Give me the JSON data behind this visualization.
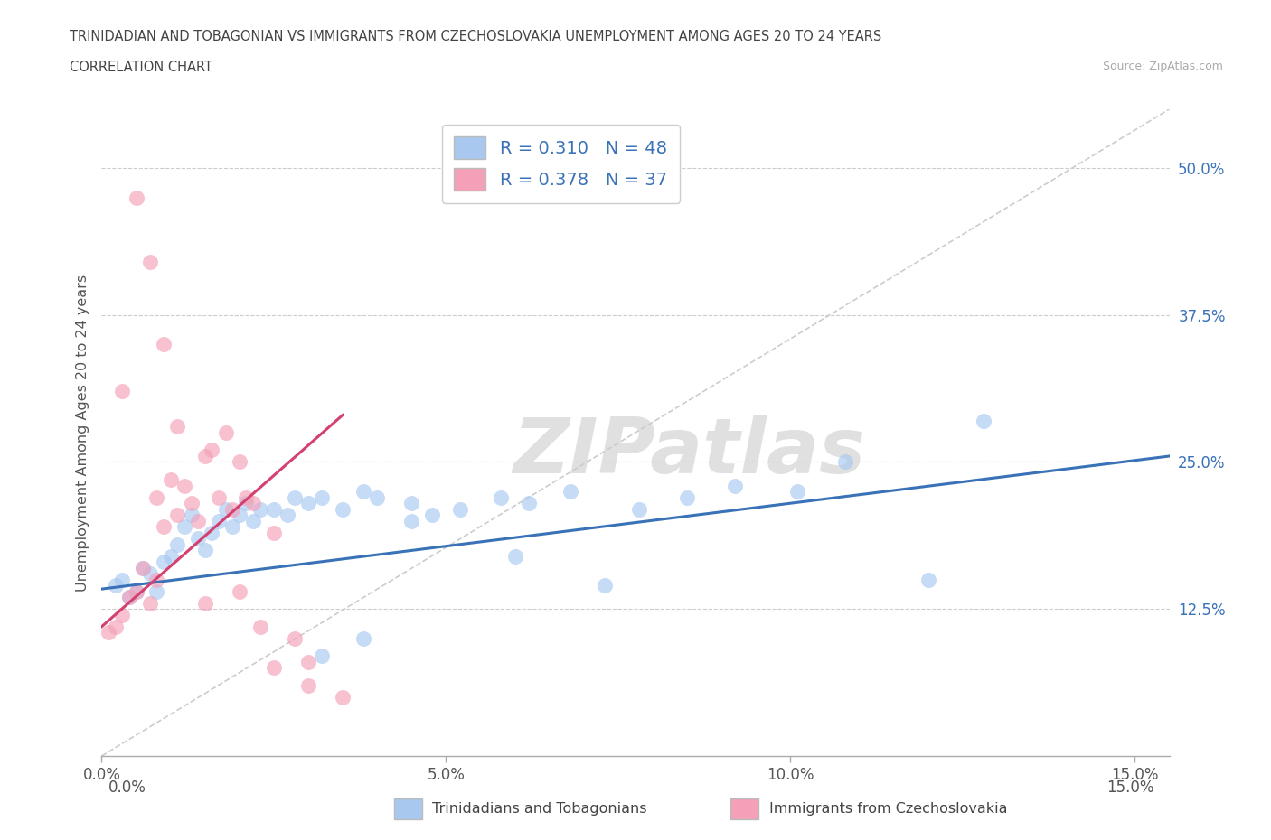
{
  "title_line1": "TRINIDADIAN AND TOBAGONIAN VS IMMIGRANTS FROM CZECHOSLOVAKIA UNEMPLOYMENT AMONG AGES 20 TO 24 YEARS",
  "title_line2": "CORRELATION CHART",
  "source_text": "Source: ZipAtlas.com",
  "ylabel": "Unemployment Among Ages 20 to 24 years",
  "ytick_vals": [
    12.5,
    25.0,
    37.5,
    50.0
  ],
  "ytick_labels": [
    "12.5%",
    "25.0%",
    "37.5%",
    "50.0%"
  ],
  "xtick_vals": [
    0.0,
    5.0,
    10.0,
    15.0
  ],
  "xtick_labels": [
    "0.0%",
    "5.0%",
    "10.0%",
    "15.0%"
  ],
  "ylim": [
    0.0,
    55.0
  ],
  "xlim": [
    0.0,
    15.5
  ],
  "blue_color": "#A8C8F0",
  "blue_line_color": "#3A72B8",
  "pink_color": "#F4A0B8",
  "pink_line_color": "#D44070",
  "legend_label1": "Trinidadians and Tobagonians",
  "legend_label2": "Immigrants from Czechoslovakia",
  "R1": "0.310",
  "N1": "48",
  "R2": "0.378",
  "N2": "37",
  "watermark": "ZIPatlas",
  "watermark_color": "#E0E0E0",
  "grid_color": "#CCCCCC",
  "title_color": "#444444",
  "blue_scatter_x": [
    0.2,
    0.3,
    0.4,
    0.5,
    0.6,
    0.7,
    0.8,
    0.9,
    1.0,
    1.1,
    1.2,
    1.3,
    1.4,
    1.5,
    1.6,
    1.7,
    1.8,
    1.9,
    2.0,
    2.1,
    2.2,
    2.3,
    2.5,
    2.7,
    2.8,
    3.0,
    3.2,
    3.5,
    3.8,
    4.0,
    4.5,
    4.8,
    5.2,
    5.8,
    6.2,
    6.8,
    7.3,
    7.8,
    8.5,
    9.2,
    10.1,
    10.8,
    12.0,
    12.8,
    3.2,
    3.8,
    4.5,
    6.0
  ],
  "blue_scatter_y": [
    14.5,
    15.0,
    13.5,
    14.0,
    16.0,
    15.5,
    14.0,
    16.5,
    17.0,
    18.0,
    19.5,
    20.5,
    18.5,
    17.5,
    19.0,
    20.0,
    21.0,
    19.5,
    20.5,
    21.5,
    20.0,
    21.0,
    21.0,
    20.5,
    22.0,
    21.5,
    22.0,
    21.0,
    22.5,
    22.0,
    21.5,
    20.5,
    21.0,
    22.0,
    21.5,
    22.5,
    14.5,
    21.0,
    22.0,
    23.0,
    22.5,
    25.0,
    15.0,
    28.5,
    8.5,
    10.0,
    20.0,
    17.0
  ],
  "pink_scatter_x": [
    0.1,
    0.2,
    0.3,
    0.4,
    0.5,
    0.6,
    0.7,
    0.8,
    0.9,
    1.0,
    1.1,
    1.2,
    1.3,
    1.4,
    1.5,
    1.6,
    1.7,
    1.8,
    1.9,
    2.0,
    2.1,
    2.2,
    2.5,
    2.8,
    3.0,
    3.5,
    0.3,
    0.5,
    0.7,
    0.9,
    1.1,
    2.0,
    2.5,
    3.0,
    2.3,
    1.5,
    0.8
  ],
  "pink_scatter_y": [
    10.5,
    11.0,
    12.0,
    13.5,
    14.0,
    16.0,
    13.0,
    22.0,
    19.5,
    23.5,
    20.5,
    23.0,
    21.5,
    20.0,
    25.5,
    26.0,
    22.0,
    27.5,
    21.0,
    25.0,
    22.0,
    21.5,
    19.0,
    10.0,
    8.0,
    5.0,
    31.0,
    47.5,
    42.0,
    35.0,
    28.0,
    14.0,
    7.5,
    6.0,
    11.0,
    13.0,
    15.0
  ],
  "blue_trend_x": [
    0.0,
    15.5
  ],
  "blue_trend_y": [
    14.2,
    25.5
  ],
  "pink_trend_x": [
    0.0,
    3.5
  ],
  "pink_trend_y": [
    11.0,
    29.0
  ],
  "diag_line_x": [
    0.0,
    15.5
  ],
  "diag_line_y": [
    0.0,
    55.0
  ],
  "grid_style": "--"
}
